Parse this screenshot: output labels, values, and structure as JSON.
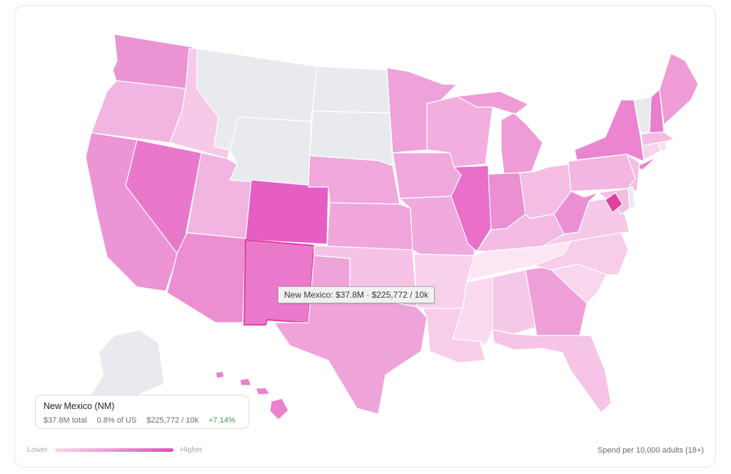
{
  "tooltip": {
    "text": "New Mexico: $37.8M · $225,772 / 10k"
  },
  "info_card": {
    "title": "New Mexico (NM)",
    "total": "$37.8M total",
    "share": "0.8% of US",
    "rate": "$225,772 / 10k",
    "change": "+7.14%"
  },
  "legend": {
    "low_label": "Lower",
    "high_label": "Higher",
    "colors": [
      "#f9d8ec",
      "#e34fb7"
    ]
  },
  "footnote": "Spend per 10,000 adults (18+)",
  "colors": {
    "no_data": "#e9eaee",
    "selected_stroke": "#e0409e",
    "positive": "#3f9a55"
  },
  "selected_state": "NM",
  "state_fills": {
    "WA": "#ec93d3",
    "OR": "#f2b5e1",
    "CA": "#ec94d4",
    "ID": "#f6c9e9",
    "NV": "#e978cb",
    "UT": "#f2b4e1",
    "AZ": "#ec8fd1",
    "MT": "#e9eaee",
    "WY": "#e9eaee",
    "CO": "#e65ec3",
    "NM": "#ea79cc",
    "ND": "#e9eaee",
    "SD": "#e9eaee",
    "NE": "#f0a8dc",
    "KS": "#f0a6da",
    "OK": "#f5c3e6",
    "TX": "#efa4d9",
    "MN": "#eea2d9",
    "IA": "#f0a8dc",
    "MO": "#f0aadd",
    "AR": "#f8d1eb",
    "LA": "#f7cdea",
    "WI": "#f1aedf",
    "IL": "#e96fc9",
    "MI": "#ee9bd6",
    "IN": "#ec8ed2",
    "OH": "#f4bee4",
    "KY": "#f3bbe3",
    "TN": "#fce6f3",
    "MS": "#f9daee",
    "AL": "#f6c8e8",
    "GA": "#ef9fd8",
    "FL": "#f5c4e6",
    "SC": "#f9d6ed",
    "NC": "#f7cde9",
    "VA": "#f6c9e8",
    "WV": "#ec8fd2",
    "PA": "#f3b5e1",
    "NY": "#ec85cf",
    "VT": "#e9eaee",
    "NH": "#ea7dcd",
    "ME": "#ee9bd6",
    "MA": "#f4bce3",
    "CT": "#f8d4ec",
    "RI": "#e9eaee",
    "NJ": "#f4bde4",
    "DE": "#e9eaee",
    "MD": "#f4bee4",
    "DC": "#e0409e",
    "AK": "#e9eaee",
    "HI": "#ea81ce"
  }
}
